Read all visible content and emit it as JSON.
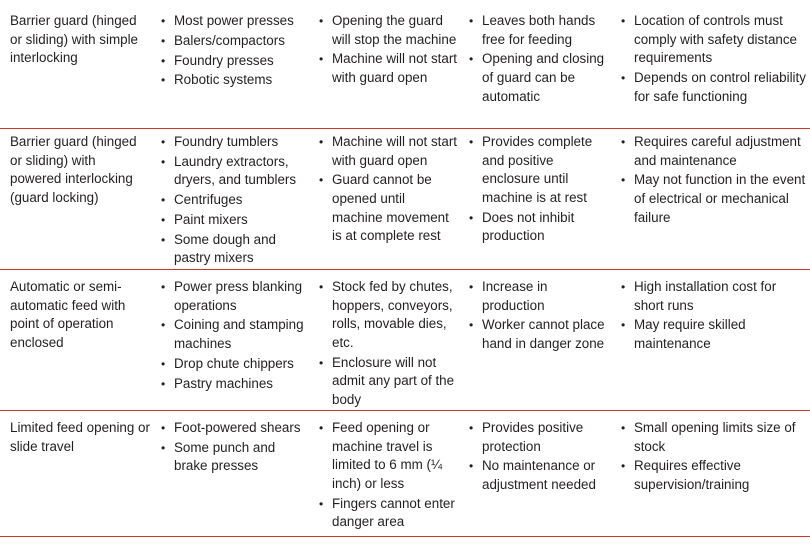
{
  "rows": [
    {
      "method": "Barrier guard (hinged or sliding) with simple interlocking",
      "applications": [
        "Most power presses",
        "Balers/compactors",
        "Foundry presses",
        "Robotic systems"
      ],
      "function": [
        "Opening the guard will stop the machine",
        "Machine will not start with guard open"
      ],
      "advantages": [
        "Leaves both hands free for feeding",
        "Opening and closing of guard can be automatic"
      ],
      "limitations": [
        "Location of controls must comply with safety distance requirements",
        "Depends on control reliability for safe functioning"
      ]
    },
    {
      "method": "Barrier guard (hinged or sliding) with powered interlocking (guard locking)",
      "applications": [
        "Foundry tumblers",
        "Laundry extractors, dryers, and tumblers",
        "Centrifuges",
        "Paint mixers",
        "Some dough and pastry mixers"
      ],
      "function": [
        "Machine will not start with guard open",
        "Guard cannot be opened until machine movement is at complete rest"
      ],
      "advantages": [
        "Provides complete and positive enclosure until machine is at rest",
        "Does not inhibit production"
      ],
      "limitations": [
        "Requires careful adjustment and maintenance",
        "May not function in the event of electrical or mechanical failure"
      ]
    },
    {
      "method": "Automatic or semi-automatic feed with point of operation enclosed",
      "applications": [
        "Power press blanking operations",
        "Coining and stamping machines",
        "Drop chute chippers",
        "Pastry machines"
      ],
      "function": [
        "Stock fed by chutes, hoppers, conveyors, rolls, movable dies, etc.",
        "Enclosure will not admit any part of the body"
      ],
      "advantages": [
        "Increase in production",
        "Worker cannot place hand in danger zone"
      ],
      "limitations": [
        "High installation cost for short runs",
        "May require skilled maintenance"
      ]
    },
    {
      "method": "Limited feed opening or slide travel",
      "applications": [
        "Foot-powered shears",
        "Some punch and brake presses"
      ],
      "function": [
        "Feed opening or machine travel is limited to 6 mm (¼ inch) or less",
        "Fingers cannot enter danger area"
      ],
      "advantages": [
        "Provides positive protection",
        "No maintenance or adjustment needed"
      ],
      "limitations": [
        "Small opening limits size of stock",
        "Requires effective supervision/training"
      ]
    }
  ]
}
